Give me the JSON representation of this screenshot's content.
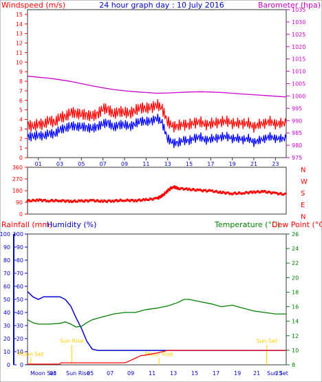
{
  "title": "24 hour graph day : 10 July 2016",
  "colors": {
    "wind_axis": "#ff0000",
    "baro_axis": "#cc00cc",
    "gust": "#ff0000",
    "avg": "#0000ff",
    "barometer": "#cc00cc",
    "direction": "#ff0000",
    "rain_axis": "#ff0000",
    "humidity_axis": "#0000cc",
    "temp_axis": "#008000",
    "dew_axis": "#ff0000",
    "temperature": "#008000",
    "humidity": "#0000cc",
    "rainfall": "#ff0000",
    "sun": "#ffcc00"
  },
  "labels": {
    "wind_ylabel": "Windspeed (m/s)",
    "baro_ylabel": "Barometer (hpa)",
    "rain_label": "Rainfall (mm)",
    "humidity_label": "Humidity (%)",
    "temp_label": "Temperature (°C)",
    "dew_label": "Dew Point (°C)"
  },
  "x_ticks": [
    "01",
    "03",
    "05",
    "07",
    "09",
    "11",
    "13",
    "15",
    "17",
    "19",
    "21",
    "23"
  ],
  "events": {
    "top": [
      {
        "label": "Moon Set",
        "hour": 0.3
      },
      {
        "label": "Sun Rise",
        "hour": 4.1
      },
      {
        "label": "Moon Rise",
        "hour": 12.2
      },
      {
        "label": "Sun Set",
        "hour": 22.2
      }
    ],
    "bottom": [
      "Moon Set",
      "03",
      "Sun Rise",
      "05",
      "07",
      "09",
      "11",
      "13",
      "15",
      "17",
      "19",
      "21",
      "Sun Set",
      "23"
    ]
  },
  "chart_data": [
    {
      "type": "line",
      "x_range": [
        0,
        24
      ],
      "series": [
        {
          "name": "Gust",
          "axis": "wind",
          "values": [
            [
              0,
              3.5
            ],
            [
              0.5,
              3.2
            ],
            [
              1,
              3.6
            ],
            [
              1.5,
              3.4
            ],
            [
              2,
              4
            ],
            [
              2.5,
              3.6
            ],
            [
              3,
              4.3
            ],
            [
              3.5,
              4.2
            ],
            [
              4,
              4.8
            ],
            [
              4.5,
              4.6
            ],
            [
              5,
              4.6
            ],
            [
              5.5,
              4.4
            ],
            [
              6,
              4.4
            ],
            [
              6.5,
              4.5
            ],
            [
              7,
              5.2
            ],
            [
              7.5,
              5
            ],
            [
              8,
              4.6
            ],
            [
              8.5,
              4.8
            ],
            [
              9,
              4.8
            ],
            [
              9.5,
              4.6
            ],
            [
              10,
              5
            ],
            [
              10.5,
              5.2
            ],
            [
              11,
              5.2
            ],
            [
              11.5,
              5.2
            ],
            [
              12,
              5.6
            ],
            [
              12.5,
              5.1
            ],
            [
              13,
              3.8
            ],
            [
              13.5,
              3.2
            ],
            [
              14,
              3.4
            ],
            [
              14.5,
              3.4
            ],
            [
              15,
              3.5
            ],
            [
              15.5,
              3.6
            ],
            [
              16,
              3.8
            ],
            [
              16.5,
              3.4
            ],
            [
              17,
              3.6
            ],
            [
              17.5,
              3.6
            ],
            [
              18,
              3.8
            ],
            [
              18.5,
              3.8
            ],
            [
              19,
              3.6
            ],
            [
              19.5,
              3.6
            ],
            [
              20,
              3.6
            ],
            [
              20.5,
              3.6
            ],
            [
              21,
              3.2
            ],
            [
              21.5,
              3.5
            ],
            [
              22,
              3.6
            ],
            [
              22.5,
              3.8
            ],
            [
              23,
              3.5
            ],
            [
              23.5,
              3.6
            ],
            [
              24,
              3.6
            ]
          ]
        },
        {
          "name": "Average",
          "axis": "wind",
          "values": [
            [
              0,
              2.2
            ],
            [
              0.5,
              2.2
            ],
            [
              1,
              2.4
            ],
            [
              1.5,
              2.2
            ],
            [
              2,
              2.6
            ],
            [
              2.5,
              2.4
            ],
            [
              3,
              3
            ],
            [
              3.5,
              3
            ],
            [
              4,
              3.4
            ],
            [
              4.5,
              3.2
            ],
            [
              5,
              3.3
            ],
            [
              5.5,
              3.1
            ],
            [
              6,
              3.1
            ],
            [
              6.5,
              3.2
            ],
            [
              7,
              3.6
            ],
            [
              7.5,
              3.6
            ],
            [
              8,
              3.2
            ],
            [
              8.5,
              3.4
            ],
            [
              9,
              3.5
            ],
            [
              9.5,
              3.2
            ],
            [
              10,
              3.6
            ],
            [
              10.5,
              3.8
            ],
            [
              11,
              3.8
            ],
            [
              11.5,
              3.8
            ],
            [
              12,
              4.2
            ],
            [
              12.5,
              3.6
            ],
            [
              13,
              2
            ],
            [
              13.5,
              1.5
            ],
            [
              14,
              1.6
            ],
            [
              14.5,
              1.8
            ],
            [
              15,
              1.8
            ],
            [
              15.5,
              2
            ],
            [
              16,
              2.2
            ],
            [
              16.5,
              1.8
            ],
            [
              17,
              2
            ],
            [
              17.5,
              2
            ],
            [
              18,
              2.2
            ],
            [
              18.5,
              2.2
            ],
            [
              19,
              2
            ],
            [
              19.5,
              2
            ],
            [
              20,
              1.9
            ],
            [
              20.5,
              2
            ],
            [
              21,
              1.6
            ],
            [
              21.5,
              1.8
            ],
            [
              22,
              2
            ],
            [
              22.5,
              2.2
            ],
            [
              23,
              2
            ],
            [
              23.5,
              2
            ],
            [
              24,
              2
            ]
          ]
        },
        {
          "name": "Barometer",
          "axis": "baro",
          "values": [
            [
              0,
              1008
            ],
            [
              1,
              1007.6
            ],
            [
              2,
              1007.2
            ],
            [
              3,
              1006.6
            ],
            [
              4,
              1005.9
            ],
            [
              5,
              1005
            ],
            [
              6,
              1004.1
            ],
            [
              7,
              1003.3
            ],
            [
              8,
              1002.6
            ],
            [
              9,
              1002.1
            ],
            [
              10,
              1001.7
            ],
            [
              11,
              1001.4
            ],
            [
              12,
              1001.1
            ],
            [
              13,
              1001.2
            ],
            [
              14,
              1001.4
            ],
            [
              15,
              1001.6
            ],
            [
              16,
              1001.7
            ],
            [
              17,
              1001.6
            ],
            [
              18,
              1001.4
            ],
            [
              19,
              1001.1
            ],
            [
              20,
              1000.8
            ],
            [
              21,
              1000.5
            ],
            [
              22,
              1000.2
            ],
            [
              23,
              999.9
            ],
            [
              24,
              999.6
            ]
          ]
        }
      ],
      "y_axes": {
        "wind": {
          "range": [
            0,
            15.5
          ],
          "ticks": [
            0,
            1,
            2,
            3,
            4,
            5,
            6,
            7,
            8,
            9,
            10,
            11,
            12,
            13,
            14,
            15
          ]
        },
        "baro": {
          "range": [
            975,
            1035
          ],
          "ticks": [
            975,
            980,
            985,
            990,
            995,
            1000,
            1005,
            1010,
            1015,
            1020,
            1025,
            1030,
            1035
          ]
        }
      }
    },
    {
      "type": "scatter",
      "x_range": [
        0,
        24
      ],
      "series": [
        {
          "name": "Wind Direction",
          "values": [
            [
              0,
              100
            ],
            [
              1,
              108
            ],
            [
              2,
              102
            ],
            [
              3,
              104
            ],
            [
              4,
              98
            ],
            [
              5,
              100
            ],
            [
              6,
              104
            ],
            [
              7,
              98
            ],
            [
              8,
              102
            ],
            [
              9,
              106
            ],
            [
              10,
              104
            ],
            [
              11,
              110
            ],
            [
              12,
              120
            ],
            [
              12.5,
              140
            ],
            [
              13,
              180
            ],
            [
              13.5,
              210
            ],
            [
              14,
              198
            ],
            [
              15,
              190
            ],
            [
              16,
              182
            ],
            [
              17,
              178
            ],
            [
              18,
              166
            ],
            [
              19,
              158
            ],
            [
              20,
              162
            ],
            [
              21,
              170
            ],
            [
              22,
              172
            ],
            [
              23,
              160
            ],
            [
              24,
              150
            ]
          ]
        }
      ],
      "y_axis": {
        "range": [
          0,
          360
        ],
        "ticks": [
          0,
          90,
          180,
          270,
          360
        ]
      },
      "compass_labels": [
        "N",
        "W",
        "S",
        "E",
        "N"
      ]
    },
    {
      "type": "line",
      "x_range": [
        0,
        24
      ],
      "series": [
        {
          "name": "Humidity",
          "axis": "percent",
          "values": [
            [
              0,
              56
            ],
            [
              0.5,
              52
            ],
            [
              1,
              50
            ],
            [
              1.5,
              52
            ],
            [
              2,
              52
            ],
            [
              2.5,
              52
            ],
            [
              3,
              52
            ],
            [
              3.5,
              50
            ],
            [
              4,
              45
            ],
            [
              4.5,
              36
            ],
            [
              5,
              28
            ],
            [
              5.5,
              18
            ],
            [
              6,
              12
            ],
            [
              6.5,
              11
            ],
            [
              7,
              11
            ],
            [
              8,
              11
            ],
            [
              9,
              11
            ],
            [
              10,
              11
            ],
            [
              11,
              11
            ],
            [
              12,
              11
            ],
            [
              13,
              11
            ],
            [
              14,
              11
            ],
            [
              15,
              11
            ],
            [
              16,
              11
            ],
            [
              17,
              11
            ],
            [
              18,
              11
            ],
            [
              19,
              11
            ],
            [
              20,
              11
            ],
            [
              21,
              11
            ],
            [
              22,
              11
            ],
            [
              23,
              11
            ],
            [
              24,
              11
            ]
          ]
        },
        {
          "name": "Temperature",
          "axis": "temp",
          "values": [
            [
              0,
              14.2
            ],
            [
              0.5,
              13.8
            ],
            [
              1,
              13.6
            ],
            [
              2,
              13.6
            ],
            [
              3,
              13.7
            ],
            [
              3.5,
              13.9
            ],
            [
              4,
              13.6
            ],
            [
              4.5,
              13.2
            ],
            [
              5,
              13.3
            ],
            [
              5.5,
              13.8
            ],
            [
              6,
              14.2
            ],
            [
              7,
              14.6
            ],
            [
              8,
              15
            ],
            [
              9,
              15.2
            ],
            [
              10,
              15.2
            ],
            [
              11,
              15.6
            ],
            [
              12,
              15.8
            ],
            [
              13,
              16.1
            ],
            [
              14,
              16.6
            ],
            [
              14.5,
              17
            ],
            [
              15,
              17
            ],
            [
              16,
              16.7
            ],
            [
              17,
              16.4
            ],
            [
              18,
              16
            ],
            [
              19,
              16.2
            ],
            [
              20,
              15.8
            ],
            [
              21,
              15.4
            ],
            [
              22,
              15.2
            ],
            [
              23,
              15
            ],
            [
              24,
              15
            ]
          ]
        },
        {
          "name": "Rainfall",
          "axis": "percent",
          "values": [
            [
              0,
              0.5
            ],
            [
              3,
              0.5
            ],
            [
              3.1,
              1.5
            ],
            [
              9,
              1.5
            ],
            [
              9.2,
              2
            ],
            [
              10,
              5
            ],
            [
              10.5,
              7
            ],
            [
              11,
              7.5
            ],
            [
              12,
              9
            ],
            [
              12.5,
              10
            ],
            [
              13,
              11
            ],
            [
              24,
              11
            ]
          ]
        }
      ],
      "y_axes": {
        "percent": {
          "range": [
            0,
            100
          ],
          "ticks": [
            0,
            10,
            20,
            30,
            40,
            50,
            60,
            70,
            80,
            90,
            100
          ]
        },
        "temp": {
          "range": [
            8,
            26
          ],
          "ticks": [
            8,
            10,
            12,
            14,
            16,
            18,
            20,
            22,
            24,
            26
          ]
        }
      }
    }
  ]
}
